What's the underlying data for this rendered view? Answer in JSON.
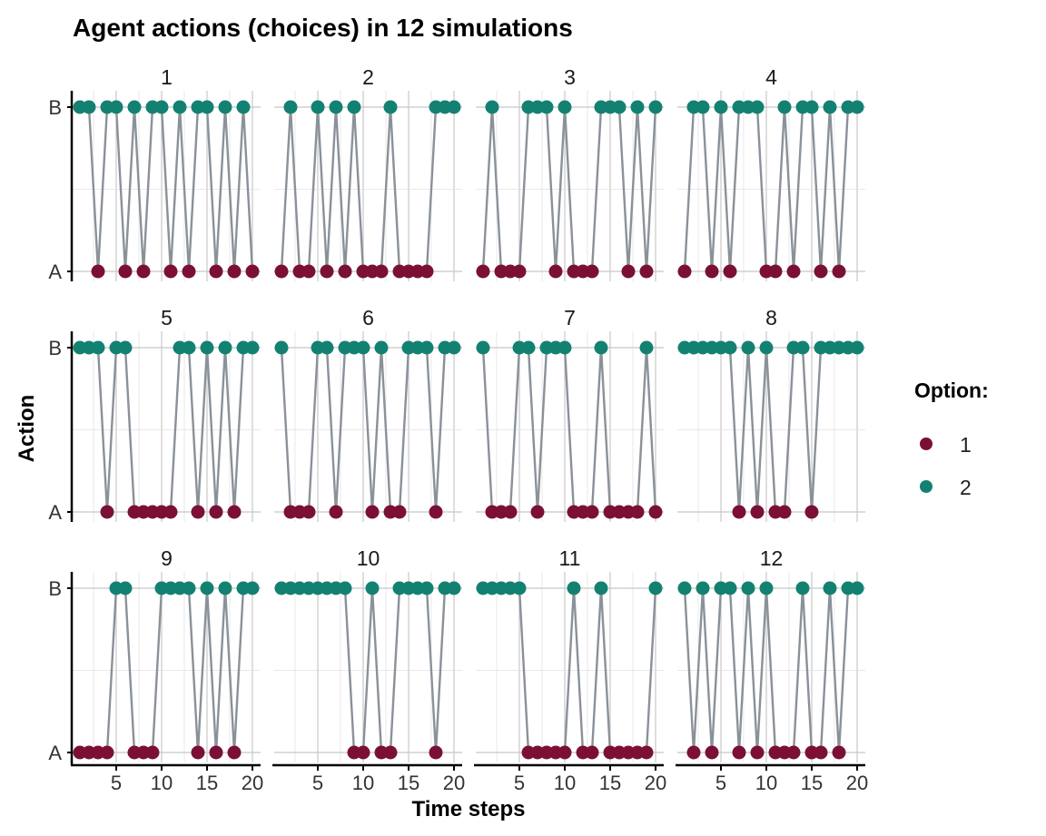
{
  "chart_data": {
    "type": "scatter",
    "title": "Agent actions (choices) in 12 simulations",
    "xlabel": "Time steps",
    "ylabel": "Action",
    "x": [
      1,
      2,
      3,
      4,
      5,
      6,
      7,
      8,
      9,
      10,
      11,
      12,
      13,
      14,
      15,
      16,
      17,
      18,
      19,
      20
    ],
    "x_ticks": [
      "5",
      "10",
      "15",
      "20"
    ],
    "x_tick_values": [
      5,
      10,
      15,
      20
    ],
    "y_ticks": [
      "A",
      "B"
    ],
    "grid": true,
    "legend": {
      "title": "Option:",
      "placement": "right",
      "entries": [
        {
          "label": "1",
          "color": "#7b1034"
        },
        {
          "label": "2",
          "color": "#138171"
        }
      ]
    },
    "colors": {
      "option1": "#7b1034",
      "option2": "#138171",
      "line": "#8a9199"
    },
    "panels": [
      {
        "label": "1",
        "actions": [
          "B",
          "B",
          "A",
          "B",
          "B",
          "A",
          "B",
          "A",
          "B",
          "B",
          "A",
          "B",
          "A",
          "B",
          "B",
          "A",
          "B",
          "A",
          "B",
          "A"
        ]
      },
      {
        "label": "2",
        "actions": [
          "A",
          "B",
          "A",
          "A",
          "B",
          "A",
          "B",
          "A",
          "B",
          "A",
          "A",
          "A",
          "B",
          "A",
          "A",
          "A",
          "A",
          "B",
          "B",
          "B"
        ]
      },
      {
        "label": "3",
        "actions": [
          "A",
          "B",
          "A",
          "A",
          "A",
          "B",
          "B",
          "B",
          "A",
          "B",
          "A",
          "A",
          "A",
          "B",
          "B",
          "B",
          "A",
          "B",
          "A",
          "B"
        ]
      },
      {
        "label": "4",
        "actions": [
          "A",
          "B",
          "B",
          "A",
          "B",
          "A",
          "B",
          "B",
          "B",
          "A",
          "A",
          "B",
          "A",
          "B",
          "B",
          "A",
          "B",
          "A",
          "B",
          "B"
        ]
      },
      {
        "label": "5",
        "actions": [
          "B",
          "B",
          "B",
          "A",
          "B",
          "B",
          "A",
          "A",
          "A",
          "A",
          "A",
          "B",
          "B",
          "A",
          "B",
          "A",
          "B",
          "A",
          "B",
          "B"
        ]
      },
      {
        "label": "6",
        "actions": [
          "B",
          "A",
          "A",
          "A",
          "B",
          "B",
          "A",
          "B",
          "B",
          "B",
          "A",
          "B",
          "A",
          "A",
          "B",
          "B",
          "B",
          "A",
          "B",
          "B"
        ]
      },
      {
        "label": "7",
        "actions": [
          "B",
          "A",
          "A",
          "A",
          "B",
          "B",
          "A",
          "B",
          "B",
          "B",
          "A",
          "A",
          "A",
          "B",
          "A",
          "A",
          "A",
          "A",
          "B",
          "A"
        ]
      },
      {
        "label": "8",
        "actions": [
          "B",
          "B",
          "B",
          "B",
          "B",
          "B",
          "A",
          "B",
          "A",
          "B",
          "A",
          "A",
          "B",
          "B",
          "A",
          "B",
          "B",
          "B",
          "B",
          "B"
        ]
      },
      {
        "label": "9",
        "actions": [
          "A",
          "A",
          "A",
          "A",
          "B",
          "B",
          "A",
          "A",
          "A",
          "B",
          "B",
          "B",
          "B",
          "A",
          "B",
          "A",
          "B",
          "A",
          "B",
          "B"
        ]
      },
      {
        "label": "10",
        "actions": [
          "B",
          "B",
          "B",
          "B",
          "B",
          "B",
          "B",
          "B",
          "A",
          "A",
          "B",
          "A",
          "A",
          "B",
          "B",
          "B",
          "B",
          "A",
          "B",
          "B"
        ]
      },
      {
        "label": "11",
        "actions": [
          "B",
          "B",
          "B",
          "B",
          "B",
          "A",
          "A",
          "A",
          "A",
          "A",
          "B",
          "A",
          "A",
          "B",
          "A",
          "A",
          "A",
          "A",
          "A",
          "B"
        ]
      },
      {
        "label": "12",
        "actions": [
          "B",
          "A",
          "B",
          "A",
          "B",
          "B",
          "A",
          "B",
          "A",
          "B",
          "A",
          "A",
          "A",
          "B",
          "A",
          "A",
          "B",
          "A",
          "B",
          "B"
        ]
      }
    ]
  }
}
